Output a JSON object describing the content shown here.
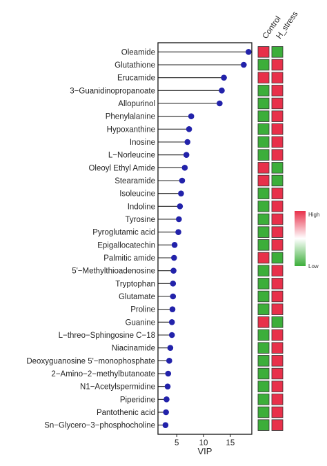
{
  "chart_data": {
    "type": "lollipop",
    "xlabel": "VIP",
    "ylabel": "",
    "x_ticks": [
      5,
      10,
      15
    ],
    "xlim": [
      1.5,
      19
    ],
    "metabolites": [
      "Oleamide",
      "Glutathione",
      "Erucamide",
      "3−Guanidinopropanoate",
      "Allopurinol",
      "Phenylalanine",
      "Hypoxanthine",
      "Inosine",
      "L−Norleucine",
      "Oleoyl Ethyl Amide",
      "Stearamide",
      "Isoleucine",
      "Indoline",
      "Tyrosine",
      "Pyroglutamic acid",
      "Epigallocatechin",
      "Palmitic amide",
      "5'−Methylthioadenosine",
      "Tryptophan",
      "Glutamate",
      "Proline",
      "Guanine",
      "L−threo−Sphingosine C−18",
      "Niacinamide",
      "Deoxyguanosine 5'−monophosphate",
      "2−Amino−2−methylbutanoate",
      "N1−Acetylspermidine",
      "Piperidine",
      "Pantothenic acid",
      "Sn−Glycero−3−phosphocholine"
    ],
    "vip": [
      18.4,
      17.5,
      13.8,
      13.4,
      13.0,
      7.7,
      7.3,
      7.0,
      6.8,
      6.5,
      6.0,
      5.8,
      5.6,
      5.4,
      5.3,
      4.6,
      4.5,
      4.4,
      4.3,
      4.3,
      4.2,
      4.1,
      4.1,
      3.8,
      3.6,
      3.4,
      3.3,
      3.1,
      3.0,
      2.9
    ],
    "heatmap": {
      "columns": [
        "Control",
        "H_stress"
      ],
      "levels": [
        [
          "high",
          "low"
        ],
        [
          "low",
          "high"
        ],
        [
          "high",
          "high"
        ],
        [
          "low",
          "high"
        ],
        [
          "low",
          "high"
        ],
        [
          "low",
          "high"
        ],
        [
          "low",
          "high"
        ],
        [
          "low",
          "high"
        ],
        [
          "low",
          "high"
        ],
        [
          "high",
          "low"
        ],
        [
          "high",
          "low"
        ],
        [
          "low",
          "high"
        ],
        [
          "low",
          "high"
        ],
        [
          "low",
          "high"
        ],
        [
          "low",
          "high"
        ],
        [
          "low",
          "high"
        ],
        [
          "high",
          "low"
        ],
        [
          "low",
          "high"
        ],
        [
          "low",
          "high"
        ],
        [
          "low",
          "high"
        ],
        [
          "low",
          "high"
        ],
        [
          "high",
          "low"
        ],
        [
          "low",
          "high"
        ],
        [
          "low",
          "high"
        ],
        [
          "low",
          "high"
        ],
        [
          "low",
          "high"
        ],
        [
          "low",
          "high"
        ],
        [
          "low",
          "high"
        ],
        [
          "low",
          "high"
        ],
        [
          "low",
          "high"
        ]
      ]
    },
    "legend": {
      "high_label": "High",
      "low_label": "Low",
      "placement": "right"
    },
    "colors": {
      "dot": "#2222aa",
      "high": "#e8304a",
      "low": "#3cae3a",
      "line": "#222222"
    },
    "grid": false
  }
}
